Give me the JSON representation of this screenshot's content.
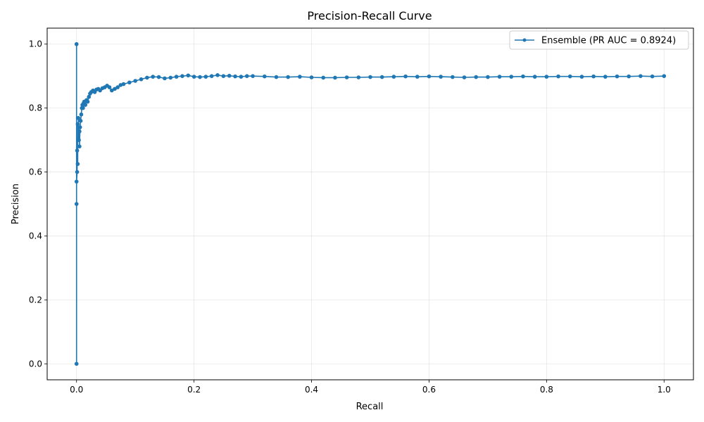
{
  "chart_data": {
    "type": "line",
    "title": "Precision-Recall Curve",
    "xlabel": "Recall",
    "ylabel": "Precision",
    "xlim": [
      -0.05,
      1.05
    ],
    "ylim": [
      -0.05,
      1.05
    ],
    "xticks": [
      0.0,
      0.2,
      0.4,
      0.6,
      0.8,
      1.0
    ],
    "yticks": [
      0.0,
      0.2,
      0.4,
      0.6,
      0.8,
      1.0
    ],
    "xtick_labels": [
      "0.0",
      "0.2",
      "0.4",
      "0.6",
      "0.8",
      "1.0"
    ],
    "ytick_labels": [
      "0.0",
      "0.2",
      "0.4",
      "0.6",
      "0.8",
      "1.0"
    ],
    "grid": true,
    "legend_position": "top-right",
    "series": [
      {
        "name": "Ensemble (PR AUC = 0.8924)",
        "color": "#1f77b4",
        "marker": "circle",
        "x": [
          0.0,
          0.0,
          0.0,
          0.0,
          0.001,
          0.001,
          0.002,
          0.002,
          0.003,
          0.003,
          0.004,
          0.005,
          0.005,
          0.006,
          0.007,
          0.008,
          0.009,
          0.01,
          0.011,
          0.012,
          0.013,
          0.015,
          0.017,
          0.019,
          0.021,
          0.023,
          0.025,
          0.028,
          0.031,
          0.034,
          0.037,
          0.04,
          0.044,
          0.048,
          0.052,
          0.056,
          0.06,
          0.065,
          0.07,
          0.075,
          0.08,
          0.09,
          0.1,
          0.11,
          0.12,
          0.13,
          0.14,
          0.15,
          0.16,
          0.17,
          0.18,
          0.19,
          0.2,
          0.21,
          0.22,
          0.23,
          0.24,
          0.25,
          0.26,
          0.27,
          0.28,
          0.29,
          0.3,
          0.32,
          0.34,
          0.36,
          0.38,
          0.4,
          0.42,
          0.44,
          0.46,
          0.48,
          0.5,
          0.52,
          0.54,
          0.56,
          0.58,
          0.6,
          0.62,
          0.64,
          0.66,
          0.68,
          0.7,
          0.72,
          0.74,
          0.76,
          0.78,
          0.8,
          0.82,
          0.84,
          0.86,
          0.88,
          0.9,
          0.92,
          0.94,
          0.96,
          0.98,
          1.0
        ],
        "y": [
          1.0,
          0.0,
          0.5,
          0.57,
          0.6,
          0.667,
          0.625,
          0.75,
          0.7,
          0.769,
          0.7,
          0.727,
          0.68,
          0.74,
          0.76,
          0.78,
          0.8,
          0.81,
          0.8,
          0.815,
          0.82,
          0.81,
          0.825,
          0.82,
          0.835,
          0.845,
          0.85,
          0.855,
          0.85,
          0.858,
          0.86,
          0.855,
          0.862,
          0.865,
          0.87,
          0.865,
          0.855,
          0.86,
          0.865,
          0.872,
          0.875,
          0.88,
          0.885,
          0.89,
          0.895,
          0.898,
          0.897,
          0.893,
          0.895,
          0.898,
          0.9,
          0.902,
          0.898,
          0.897,
          0.898,
          0.9,
          0.903,
          0.9,
          0.901,
          0.899,
          0.898,
          0.9,
          0.9,
          0.899,
          0.897,
          0.897,
          0.898,
          0.896,
          0.895,
          0.895,
          0.896,
          0.896,
          0.897,
          0.897,
          0.898,
          0.899,
          0.898,
          0.899,
          0.898,
          0.897,
          0.896,
          0.897,
          0.897,
          0.898,
          0.898,
          0.899,
          0.898,
          0.898,
          0.899,
          0.899,
          0.898,
          0.899,
          0.898,
          0.899,
          0.899,
          0.9,
          0.899,
          0.9
        ]
      }
    ]
  }
}
